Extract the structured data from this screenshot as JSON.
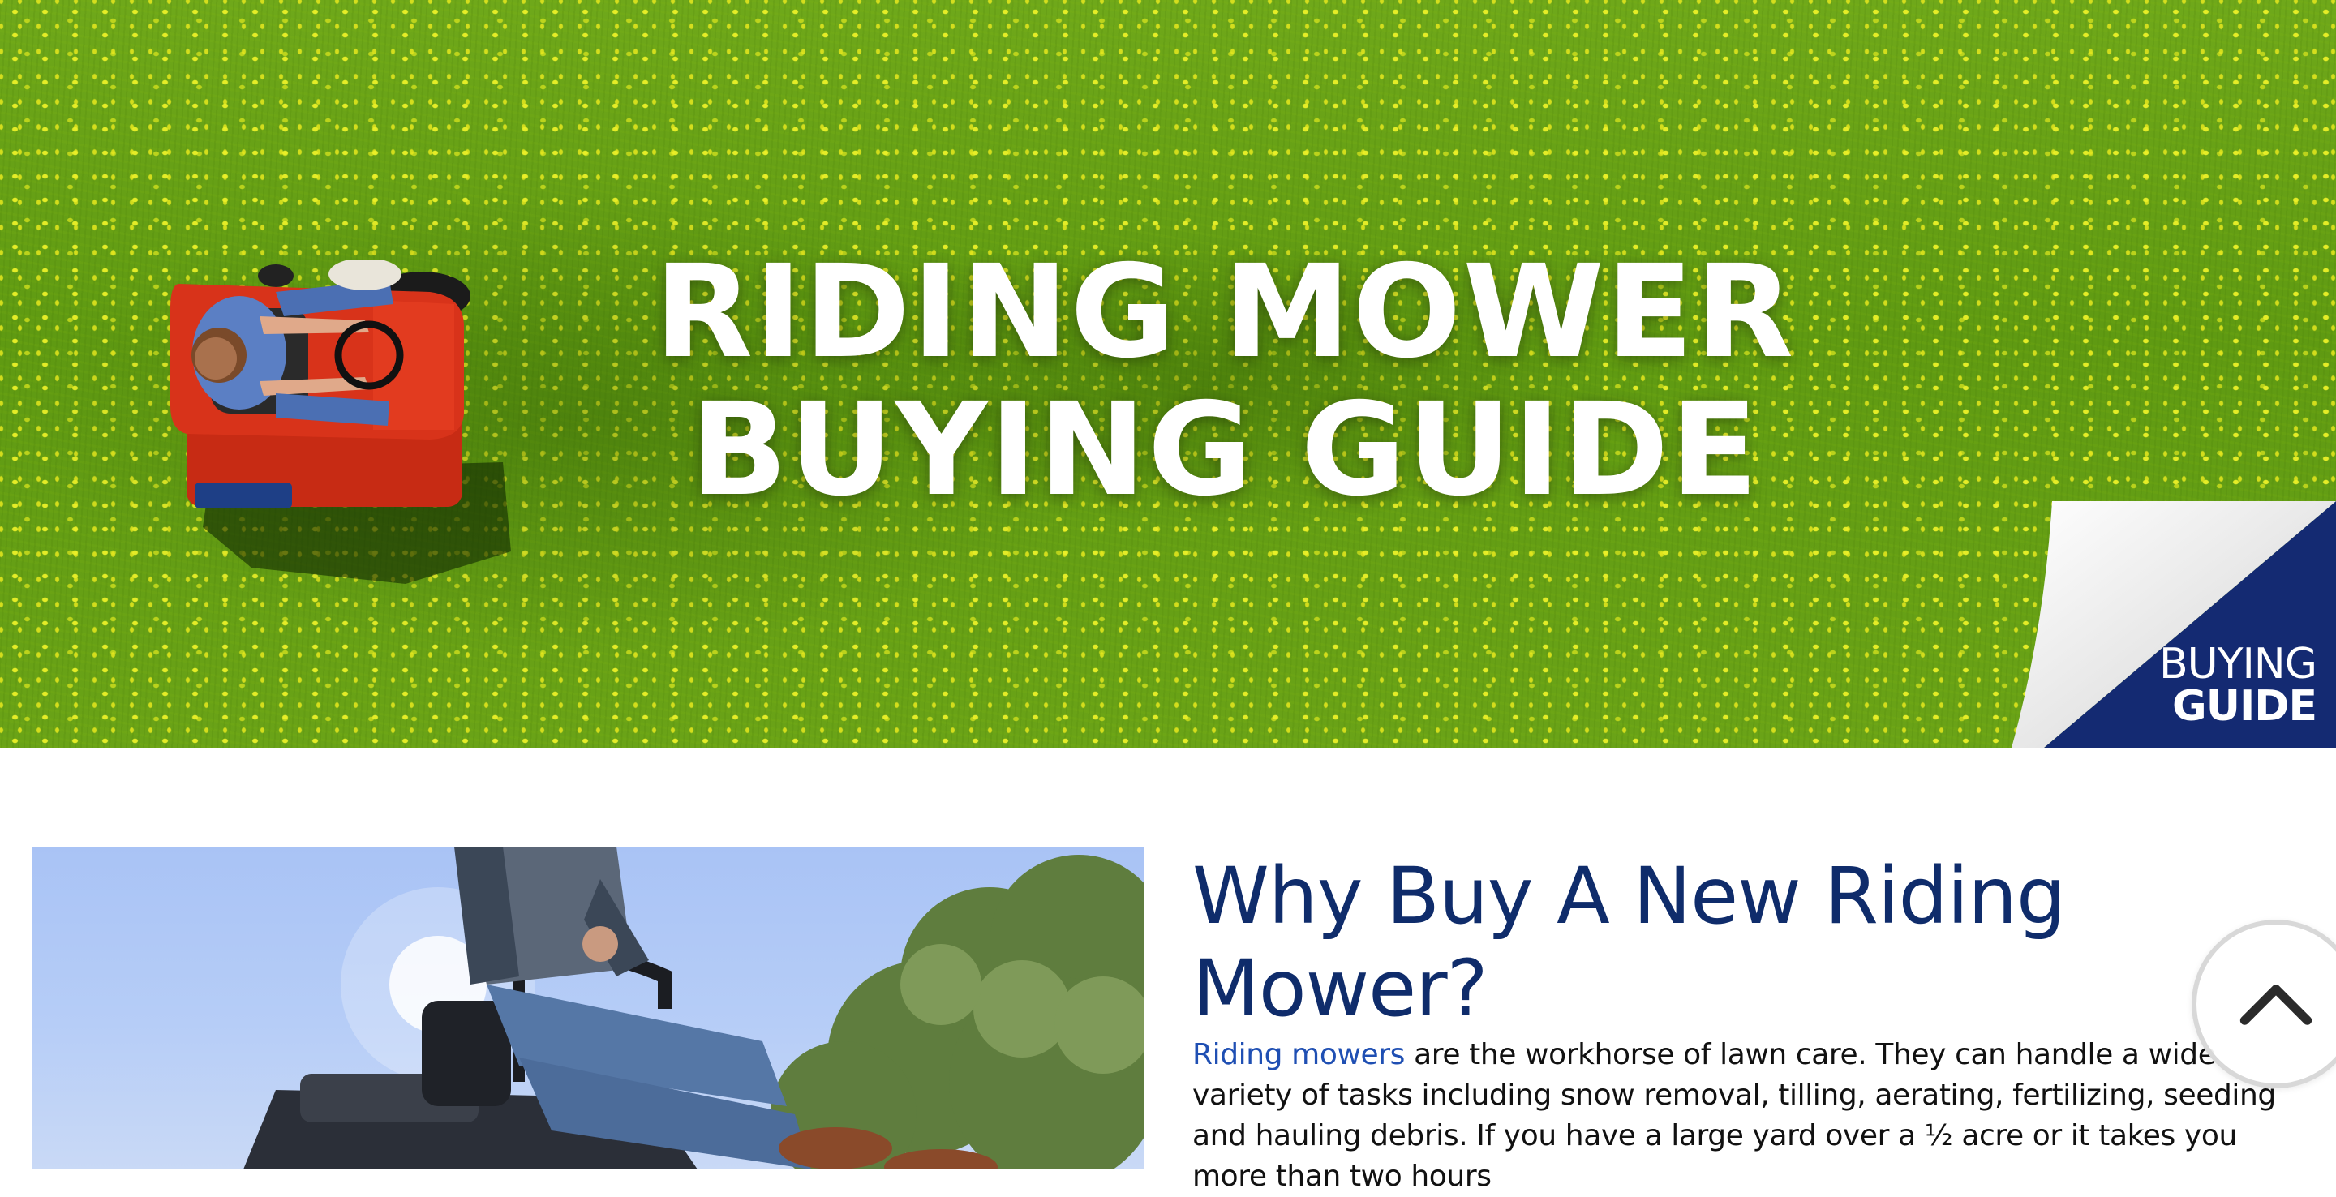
{
  "hero": {
    "title_line1": "RIDING MOWER",
    "title_line2": "BUYING GUIDE",
    "badge_line1": "BUYING",
    "badge_line2": "GUIDE",
    "badge_color": "#142a72",
    "grass_color": "#6aa317"
  },
  "section": {
    "title": "Why Buy A New Riding Mower?",
    "intro_link": "Riding mowers",
    "intro_text": " are the workhorse of lawn care. They can handle a wide variety of tasks including snow removal, tilling, aerating, fertilizing, seeding and hauling debris. If you have a large yard over a ½ acre or it takes you more than two hours"
  },
  "icons": {
    "back_to_top": "chevron-up-icon"
  },
  "colors": {
    "heading": "#0f2c6b",
    "link": "#1f4fb3"
  }
}
